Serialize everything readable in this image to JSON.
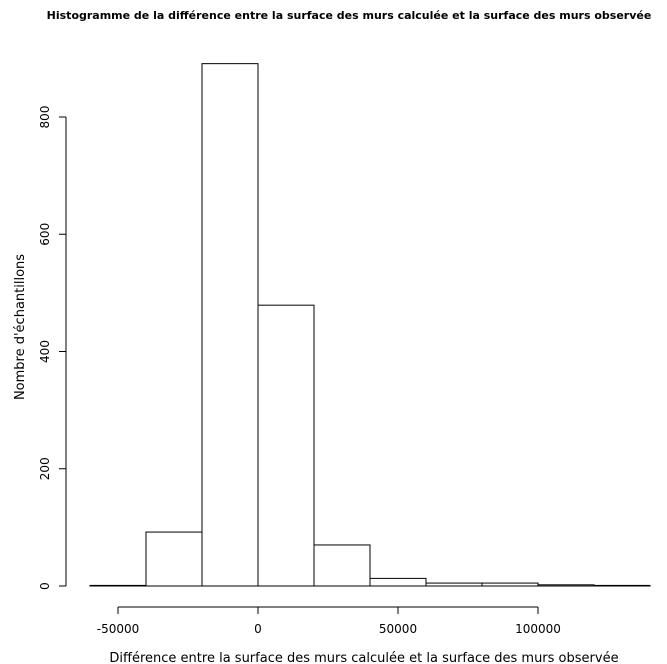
{
  "chart_data": {
    "type": "bar",
    "title": "Histogramme de la différence entre la surface des murs calculée et la surface des murs observée",
    "xlabel": "Différence entre la surface des murs calculée et la surface des murs observée",
    "ylabel": "Nombre d'échantillons",
    "bin_edges": [
      -60000,
      -40000,
      -20000,
      0,
      20000,
      40000,
      60000,
      80000,
      100000,
      120000,
      140000
    ],
    "values": [
      1,
      92,
      891,
      479,
      70,
      13,
      5,
      5,
      2,
      1
    ],
    "xlim": [
      -70000,
      145000
    ],
    "ylim": [
      0,
      891
    ],
    "x_ticks": [
      -50000,
      0,
      50000,
      100000
    ],
    "x_tick_labels": [
      "-50000",
      "0",
      "50000",
      "100000"
    ],
    "y_ticks": [
      0,
      200,
      400,
      600,
      800
    ],
    "y_tick_labels": [
      "0",
      "200",
      "400",
      "600",
      "800"
    ],
    "grid": false,
    "colors": {
      "bar_fill": "#ffffff",
      "bar_stroke": "#000000"
    }
  }
}
